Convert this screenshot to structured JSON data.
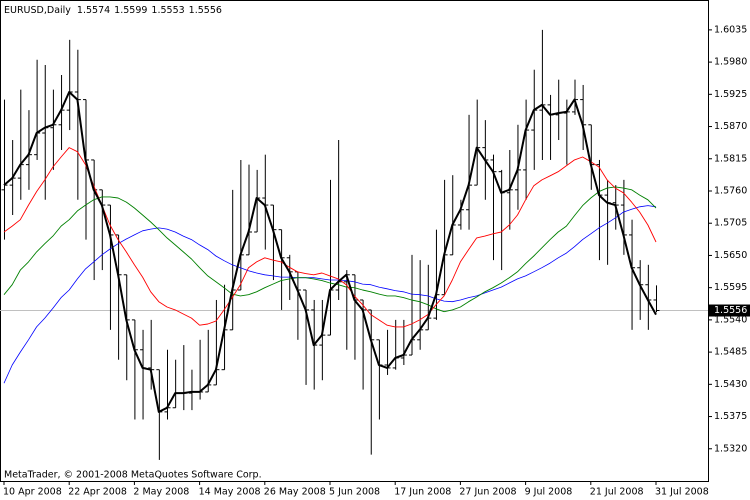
{
  "chart_data": {
    "type": "ohlc",
    "title": "EURUSD,Daily",
    "footer": "MetaTrader, © 2001-2008 MetaQuotes Software Corp.",
    "color": "#000000",
    "categories": [
      "10 Apr 2008",
      null,
      null,
      null,
      null,
      null,
      null,
      null,
      "22 Apr 2008",
      null,
      null,
      null,
      null,
      null,
      null,
      null,
      "2 May 2008",
      null,
      null,
      null,
      null,
      null,
      null,
      null,
      "14 May 2008",
      null,
      null,
      null,
      null,
      null,
      null,
      null,
      "26 May 2008",
      null,
      null,
      null,
      null,
      null,
      null,
      null,
      "5 Jun 2008",
      null,
      null,
      null,
      null,
      null,
      null,
      null,
      "17 Jun 2008",
      null,
      null,
      null,
      null,
      null,
      null,
      null,
      "27 Jun 2008",
      null,
      null,
      null,
      null,
      null,
      null,
      null,
      "9 Jul 2008",
      null,
      null,
      null,
      null,
      null,
      null,
      null,
      "21 Jul 2008",
      null,
      null,
      null,
      null,
      null,
      null,
      null,
      "31 Jul 2008"
    ],
    "open": [
      1.5762,
      1.577,
      1.5782,
      1.5805,
      1.5822,
      1.5859,
      1.5868,
      1.5873,
      1.5898,
      1.5929,
      1.5916,
      1.5813,
      1.5762,
      1.5736,
      1.5685,
      1.5617,
      1.554,
      1.5489,
      1.5458,
      1.5455,
      1.5383,
      1.539,
      1.5415,
      1.5415,
      1.5417,
      1.5417,
      1.5429,
      1.5455,
      1.5523,
      1.5591,
      1.5651,
      1.569,
      1.5748,
      1.5736,
      1.5694,
      1.5646,
      1.5622,
      1.5591,
      1.5557,
      1.5497,
      1.5514,
      1.5591,
      1.5605,
      1.5617,
      1.5574,
      1.5557,
      1.5506,
      1.5463,
      1.5458,
      1.5475,
      1.548,
      1.5506,
      1.5523,
      1.5543,
      1.5583,
      1.5651,
      1.5702,
      1.5728,
      1.577,
      1.5834,
      1.5813,
      1.5793,
      1.5757,
      1.5762,
      1.5796,
      1.5864,
      1.5898,
      1.5907,
      1.589,
      1.5893,
      1.5895,
      1.5916,
      1.5873,
      1.5805,
      1.5753,
      1.574,
      1.5736,
      1.5685,
      1.5629,
      1.56,
      1.5574
    ],
    "high": [
      1.5916,
      1.5847,
      1.5933,
      1.5898,
      1.5984,
      1.5975,
      1.5933,
      1.5958,
      1.6018,
      1.6001,
      1.5916,
      1.5813,
      1.5762,
      1.5736,
      1.5685,
      1.5617,
      1.554,
      1.5523,
      1.554,
      1.5455,
      1.5489,
      1.5472,
      1.5497,
      1.5455,
      1.5506,
      1.5523,
      1.5574,
      1.56,
      1.5762,
      1.5813,
      1.5805,
      1.5796,
      1.5822,
      1.5736,
      1.5694,
      1.5651,
      1.5622,
      1.5591,
      1.5574,
      1.5574,
      1.5779,
      1.5847,
      1.5625,
      1.5617,
      1.5574,
      1.5557,
      1.5506,
      1.5523,
      1.554,
      1.554,
      1.5651,
      1.5642,
      1.5634,
      1.5694,
      1.5779,
      1.5787,
      1.5745,
      1.589,
      1.5916,
      1.5881,
      1.5822,
      1.5796,
      1.583,
      1.5873,
      1.5916,
      1.5967,
      1.6035,
      1.5924,
      1.595,
      1.5916,
      1.595,
      1.5941,
      1.5873,
      1.5813,
      1.5779,
      1.577,
      1.5779,
      1.5711,
      1.5642,
      1.5634,
      1.5599
    ],
    "low": [
      1.5677,
      1.5719,
      1.5745,
      1.5762,
      1.5813,
      1.5745,
      1.5796,
      1.583,
      1.5864,
      1.5745,
      1.5677,
      1.5608,
      1.5625,
      1.5523,
      1.5472,
      1.5437,
      1.537,
      1.537,
      1.5421,
      1.5301,
      1.537,
      1.539,
      1.5386,
      1.5386,
      1.5404,
      1.5417,
      1.5429,
      1.5455,
      1.5523,
      1.5591,
      1.5651,
      1.569,
      1.566,
      1.5608,
      1.5557,
      1.5574,
      1.5506,
      1.5429,
      1.5421,
      1.5437,
      1.5514,
      1.5574,
      1.5489,
      1.5472,
      1.5421,
      1.531,
      1.537,
      1.5446,
      1.5455,
      1.5463,
      1.548,
      1.5489,
      1.5523,
      1.554,
      1.5583,
      1.5651,
      1.5694,
      1.5694,
      1.577,
      1.5745,
      1.5642,
      1.5625,
      1.5694,
      1.5728,
      1.5745,
      1.5796,
      1.5813,
      1.5813,
      1.5847,
      1.5805,
      1.589,
      1.583,
      1.5762,
      1.5642,
      1.5634,
      1.5694,
      1.5651,
      1.5523,
      1.554,
      1.5523,
      1.5553
    ],
    "close": [
      1.577,
      1.5782,
      1.5805,
      1.5822,
      1.5859,
      1.5868,
      1.5873,
      1.5898,
      1.5929,
      1.5916,
      1.5813,
      1.5762,
      1.5736,
      1.5685,
      1.5617,
      1.554,
      1.5489,
      1.5458,
      1.5455,
      1.5383,
      1.539,
      1.5415,
      1.5415,
      1.5417,
      1.5417,
      1.5429,
      1.5455,
      1.5523,
      1.5591,
      1.5651,
      1.569,
      1.5748,
      1.5736,
      1.5694,
      1.5646,
      1.5622,
      1.5591,
      1.5557,
      1.5497,
      1.5514,
      1.5591,
      1.5605,
      1.5617,
      1.5574,
      1.5557,
      1.5506,
      1.5463,
      1.5458,
      1.5475,
      1.548,
      1.5506,
      1.5523,
      1.5543,
      1.5583,
      1.5651,
      1.5702,
      1.5728,
      1.577,
      1.5834,
      1.5813,
      1.5793,
      1.5757,
      1.5762,
      1.5796,
      1.5864,
      1.5898,
      1.5907,
      1.589,
      1.5893,
      1.5895,
      1.5916,
      1.5873,
      1.5805,
      1.5753,
      1.574,
      1.5736,
      1.5685,
      1.5629,
      1.56,
      1.5574,
      1.5556
    ],
    "lines": [
      {
        "color": "#0000ff",
        "width": 0.8,
        "values": [
          1.5432,
          1.5463,
          1.5485,
          1.5506,
          1.5528,
          1.5543,
          1.556,
          1.5578,
          1.5591,
          1.561,
          1.5627,
          1.5639,
          1.5651,
          1.5661,
          1.567,
          1.5678,
          1.5685,
          1.5692,
          1.5695,
          1.5697,
          1.5695,
          1.569,
          1.5683,
          1.5677,
          1.5668,
          1.566,
          1.5649,
          1.5641,
          1.5634,
          1.5629,
          1.5624,
          1.562,
          1.5617,
          1.5615,
          1.5613,
          1.5613,
          1.5612,
          1.5612,
          1.5612,
          1.561,
          1.5608,
          1.5608,
          1.5607,
          1.5605,
          1.5601,
          1.56,
          1.5596,
          1.5593,
          1.559,
          1.5588,
          1.5584,
          1.5583,
          1.5581,
          1.5576,
          1.5572,
          1.5571,
          1.5574,
          1.5578,
          1.5581,
          1.5586,
          1.5591,
          1.5596,
          1.5603,
          1.561,
          1.5615,
          1.5622,
          1.5629,
          1.5637,
          1.5646,
          1.5654,
          1.5665,
          1.5677,
          1.5687,
          1.5697,
          1.5705,
          1.5714,
          1.5724,
          1.5729,
          1.5733,
          1.5735,
          1.5733
        ]
      },
      {
        "color": "#008000",
        "width": 0.9,
        "values": [
          1.5583,
          1.56,
          1.5625,
          1.5639,
          1.5656,
          1.567,
          1.5683,
          1.57,
          1.5711,
          1.5726,
          1.5736,
          1.5745,
          1.575,
          1.575,
          1.5748,
          1.5741,
          1.5731,
          1.5719,
          1.5707,
          1.5694,
          1.568,
          1.5668,
          1.5656,
          1.5644,
          1.5629,
          1.5615,
          1.5605,
          1.5595,
          1.5584,
          1.5581,
          1.5583,
          1.5588,
          1.5595,
          1.5601,
          1.5607,
          1.561,
          1.5612,
          1.5612,
          1.561,
          1.5607,
          1.5603,
          1.56,
          1.5596,
          1.5595,
          1.5591,
          1.5588,
          1.5584,
          1.5581,
          1.5581,
          1.5578,
          1.5574,
          1.5571,
          1.5566,
          1.5559,
          1.5554,
          1.5557,
          1.5562,
          1.5571,
          1.5579,
          1.5588,
          1.5595,
          1.5603,
          1.5612,
          1.5622,
          1.5636,
          1.5649,
          1.5663,
          1.5677,
          1.569,
          1.57,
          1.5718,
          1.5735,
          1.5748,
          1.5759,
          1.5765,
          1.5767,
          1.5765,
          1.5762,
          1.5753,
          1.5745,
          1.5731
        ]
      },
      {
        "color": "#ff0000",
        "width": 0.9,
        "values": [
          1.569,
          1.57,
          1.5711,
          1.5736,
          1.5759,
          1.5779,
          1.5801,
          1.5818,
          1.5834,
          1.5827,
          1.5805,
          1.5769,
          1.5736,
          1.5702,
          1.5677,
          1.5656,
          1.5634,
          1.5613,
          1.5588,
          1.5571,
          1.5562,
          1.5557,
          1.555,
          1.5543,
          1.5531,
          1.5533,
          1.5538,
          1.5557,
          1.5578,
          1.56,
          1.5629,
          1.5639,
          1.5646,
          1.5642,
          1.5639,
          1.563,
          1.5622,
          1.5619,
          1.5617,
          1.562,
          1.5615,
          1.561,
          1.56,
          1.5581,
          1.5566,
          1.5549,
          1.554,
          1.5531,
          1.5528,
          1.5528,
          1.5533,
          1.554,
          1.5549,
          1.5566,
          1.5581,
          1.5608,
          1.5639,
          1.566,
          1.568,
          1.5683,
          1.5687,
          1.569,
          1.5702,
          1.5719,
          1.5745,
          1.5769,
          1.5779,
          1.5786,
          1.5793,
          1.5803,
          1.5813,
          1.5818,
          1.581,
          1.5801,
          1.5779,
          1.5765,
          1.5757,
          1.5741,
          1.5724,
          1.5702,
          1.5673
        ]
      },
      {
        "color": "#000000",
        "width": 2,
        "values": [
          1.577,
          1.5782,
          1.5805,
          1.5822,
          1.5859,
          1.5868,
          1.5873,
          1.5898,
          1.5929,
          1.5916,
          1.5813,
          1.5762,
          1.5736,
          1.5685,
          1.5617,
          1.554,
          1.5489,
          1.5458,
          1.5455,
          1.5383,
          1.539,
          1.5415,
          1.5415,
          1.5417,
          1.5417,
          1.5429,
          1.5455,
          1.5523,
          1.5591,
          1.5651,
          1.569,
          1.5748,
          1.5736,
          1.5694,
          1.5646,
          1.5622,
          1.5591,
          1.5557,
          1.5497,
          1.5514,
          1.5591,
          1.5605,
          1.5617,
          1.5574,
          1.5557,
          1.5506,
          1.5463,
          1.5458,
          1.5475,
          1.548,
          1.5506,
          1.5523,
          1.5543,
          1.5583,
          1.5651,
          1.5702,
          1.5728,
          1.577,
          1.5834,
          1.5813,
          1.5793,
          1.5757,
          1.5762,
          1.5796,
          1.5864,
          1.5898,
          1.5907,
          1.589,
          1.5893,
          1.5895,
          1.5916,
          1.5873,
          1.5805,
          1.5753,
          1.574,
          1.5736,
          1.5685,
          1.5629,
          1.56,
          1.5574,
          1.5549
        ]
      }
    ],
    "ylim": [
      1.5265,
      1.6086
    ],
    "yticks": [
      1.6035,
      {
        "value": 1.598,
        "label": "1.5980"
      },
      1.5925,
      {
        "value": 1.587,
        "label": "1.5870"
      },
      1.5815,
      {
        "value": 1.576,
        "label": "1.5760"
      },
      1.5705,
      {
        "value": 1.565,
        "label": "1.5650"
      },
      1.5595,
      {
        "value": 1.554,
        "label": "1.5540"
      },
      1.5485,
      {
        "value": 1.543,
        "label": "1.5430"
      },
      1.5375,
      {
        "value": 1.532,
        "label": "1.5320"
      }
    ],
    "grid": false
  }
}
